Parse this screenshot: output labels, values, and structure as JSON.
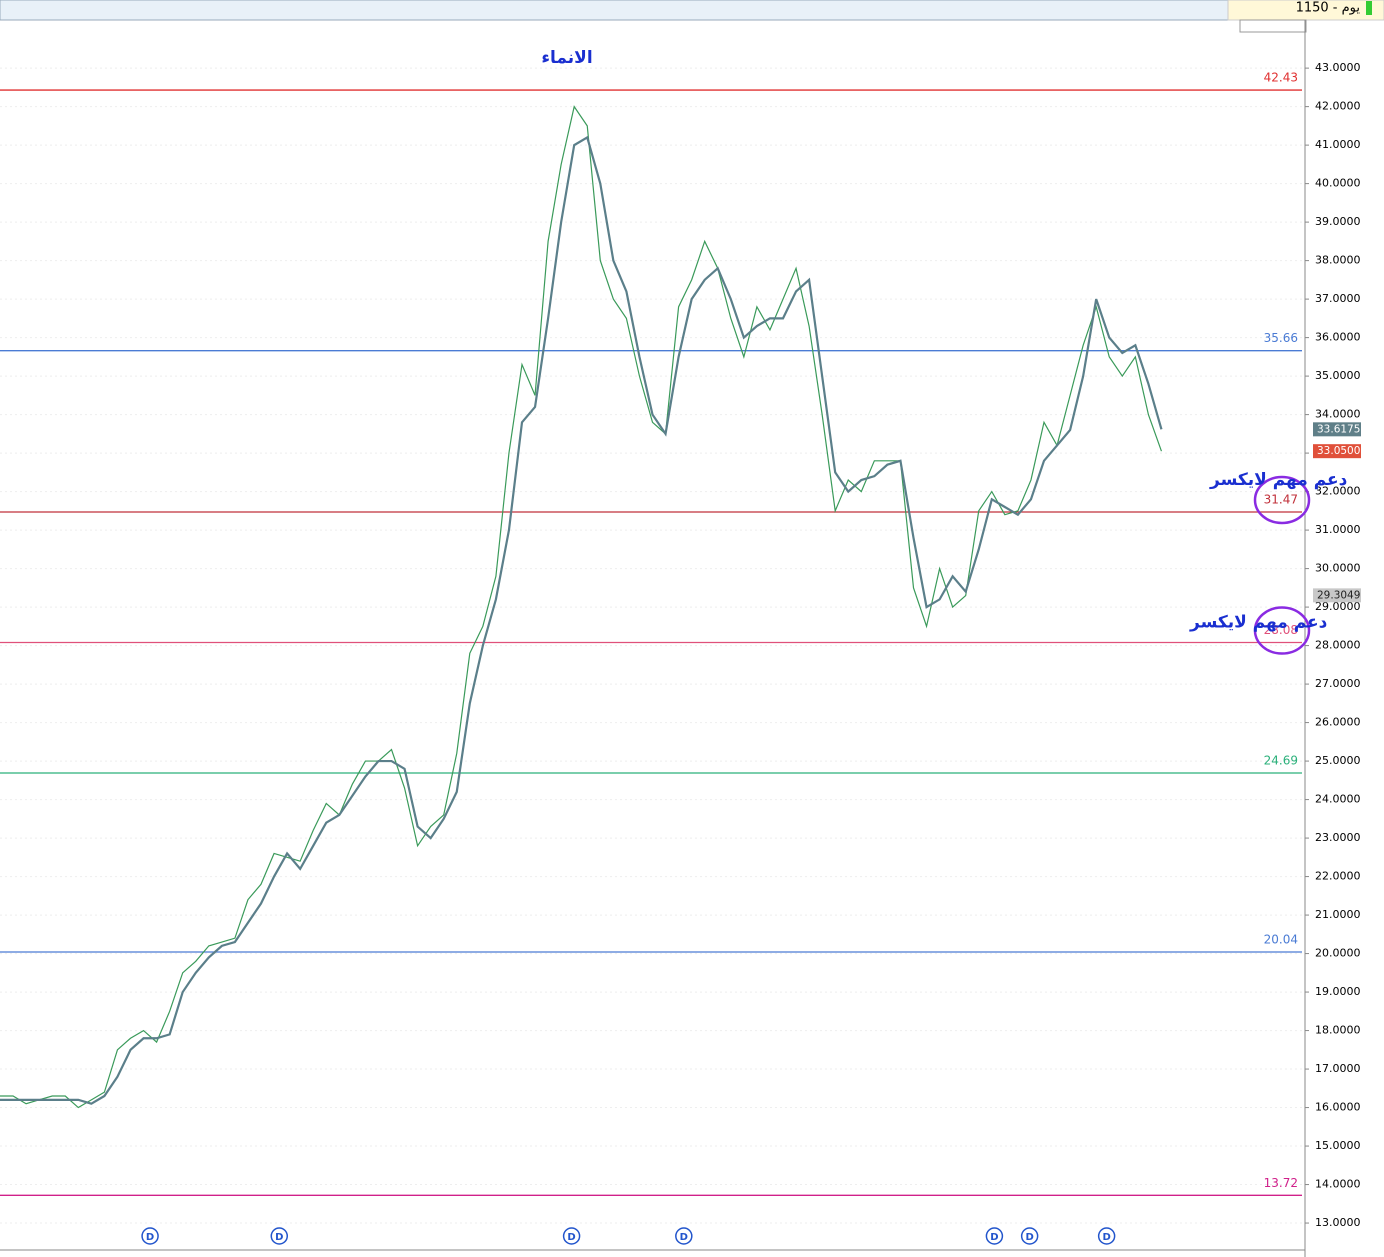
{
  "chart_data": {
    "type": "line",
    "header": "1150 - يوم",
    "title": "الانماء",
    "xlim": [
      0,
      100
    ],
    "ylim": [
      12.3,
      44.25
    ],
    "yticks": [
      {
        "value": 13,
        "label": "13.0000"
      },
      {
        "value": 14,
        "label": "14.0000"
      },
      {
        "value": 15,
        "label": "15.0000"
      },
      {
        "value": 16,
        "label": "16.0000"
      },
      {
        "value": 17,
        "label": "17.0000"
      },
      {
        "value": 18,
        "label": "18.0000"
      },
      {
        "value": 19,
        "label": "19.0000"
      },
      {
        "value": 20,
        "label": "20.0000"
      },
      {
        "value": 21,
        "label": "21.0000"
      },
      {
        "value": 22,
        "label": "22.0000"
      },
      {
        "value": 23,
        "label": "23.0000"
      },
      {
        "value": 24,
        "label": "24.0000"
      },
      {
        "value": 25,
        "label": "25.0000"
      },
      {
        "value": 26,
        "label": "26.0000"
      },
      {
        "value": 27,
        "label": "27.0000"
      },
      {
        "value": 28,
        "label": "28.0000"
      },
      {
        "value": 29,
        "label": "29.0000"
      },
      {
        "value": 30,
        "label": "30.0000"
      },
      {
        "value": 31,
        "label": "31.0000"
      },
      {
        "value": 32,
        "label": "32.0000"
      },
      {
        "value": 33,
        "label": "33.0000"
      },
      {
        "value": 34,
        "label": "34.0000"
      },
      {
        "value": 35,
        "label": "35.0000"
      },
      {
        "value": 36,
        "label": "36.0000"
      },
      {
        "value": 37,
        "label": "37.0000"
      },
      {
        "value": 38,
        "label": "38.0000"
      },
      {
        "value": 39,
        "label": "39.0000"
      },
      {
        "value": 40,
        "label": "40.0000"
      },
      {
        "value": 41,
        "label": "41.0000"
      },
      {
        "value": 42,
        "label": "42.0000"
      },
      {
        "value": 43,
        "label": "43.0000"
      }
    ],
    "grid": true,
    "x": [
      0,
      1,
      2,
      3,
      4,
      5,
      6,
      7,
      8,
      9,
      10,
      11,
      12,
      13,
      14,
      15,
      16,
      17,
      18,
      19,
      20,
      21,
      22,
      23,
      24,
      25,
      26,
      27,
      28,
      29,
      30,
      31,
      32,
      33,
      34,
      35,
      36,
      37,
      38,
      39,
      40,
      41,
      42,
      43,
      44,
      45,
      46,
      47,
      48,
      49,
      50,
      51,
      52,
      53,
      54,
      55,
      56,
      57,
      58,
      59,
      60,
      61,
      62,
      63,
      64,
      65,
      66,
      67,
      68,
      69,
      70,
      71,
      72,
      73,
      74,
      75,
      76,
      77,
      78,
      79,
      80,
      81,
      82,
      83,
      84,
      85,
      86,
      87,
      88,
      89
    ],
    "series": [
      {
        "color": "#3a9a5a",
        "values": [
          16.3,
          16.3,
          16.1,
          16.2,
          16.3,
          16.3,
          16.0,
          16.2,
          16.4,
          17.5,
          17.8,
          18.0,
          17.7,
          18.5,
          19.5,
          19.8,
          20.2,
          20.3,
          20.4,
          21.4,
          21.8,
          22.6,
          22.5,
          22.4,
          23.2,
          23.9,
          23.6,
          24.4,
          25.0,
          25.0,
          25.3,
          24.3,
          22.8,
          23.3,
          23.6,
          25.2,
          27.8,
          28.5,
          29.8,
          33.0,
          35.3,
          34.5,
          38.5,
          40.5,
          42.0,
          41.5,
          38.0,
          37.0,
          36.5,
          35.0,
          33.8,
          33.5,
          36.8,
          37.5,
          38.5,
          37.8,
          36.5,
          35.5,
          36.8,
          36.2,
          37.0,
          37.8,
          36.3,
          34.0,
          31.5,
          32.3,
          32.0,
          32.8,
          32.8,
          32.8,
          29.5,
          28.5,
          30.0,
          29.0,
          29.3,
          31.5,
          32.0,
          31.4,
          31.5,
          32.3,
          33.8,
          33.2,
          34.5,
          35.8,
          36.8,
          35.5,
          35.0,
          35.5,
          34.0,
          33.05
        ]
      },
      {
        "color": "#5b7f8a",
        "values": [
          16.2,
          16.2,
          16.2,
          16.2,
          16.2,
          16.2,
          16.2,
          16.1,
          16.3,
          16.8,
          17.5,
          17.8,
          17.8,
          17.9,
          19.0,
          19.5,
          19.9,
          20.2,
          20.3,
          20.8,
          21.3,
          22.0,
          22.6,
          22.2,
          22.8,
          23.4,
          23.6,
          24.1,
          24.6,
          25.0,
          25.0,
          24.8,
          23.3,
          23.0,
          23.5,
          24.2,
          26.5,
          28.0,
          29.2,
          31.0,
          33.8,
          34.2,
          36.5,
          39.0,
          41.0,
          41.2,
          40.0,
          38.0,
          37.2,
          35.5,
          34.0,
          33.5,
          35.5,
          37.0,
          37.5,
          37.8,
          37.0,
          36.0,
          36.3,
          36.5,
          36.5,
          37.2,
          37.5,
          35.0,
          32.5,
          32.0,
          32.3,
          32.4,
          32.7,
          32.8,
          30.8,
          29.0,
          29.2,
          29.8,
          29.4,
          30.5,
          31.8,
          31.6,
          31.4,
          31.8,
          32.8,
          33.2,
          33.6,
          35.0,
          37.0,
          36.0,
          35.6,
          35.8,
          34.8,
          33.6175
        ]
      }
    ],
    "levels": [
      {
        "value": 42.43,
        "color": "#e03030"
      },
      {
        "value": 35.66,
        "color": "#4a7bd4"
      },
      {
        "value": 31.47,
        "color": "#c0303a",
        "circled": true
      },
      {
        "value": 28.08,
        "color": "#e0507a",
        "circled": true
      },
      {
        "value": 24.69,
        "color": "#2ab07a"
      },
      {
        "value": 20.04,
        "color": "#4a7bd4"
      },
      {
        "value": 13.72,
        "color": "#d0208a"
      }
    ],
    "annotations": [
      {
        "text": "دعم مهم لايكسر",
        "y": 32.3
      },
      {
        "text": "دعم مهم لايكسر",
        "y": 28.6
      }
    ],
    "price_tags": [
      {
        "value": 33.6175,
        "label": "33.6175",
        "color": "#5f7f88"
      },
      {
        "value": 33.05,
        "label": "33.0500",
        "color": "#e0503a"
      },
      {
        "value": 29.3049,
        "label": "29.3049",
        "color": "#c8c8c8"
      }
    ],
    "dividend_markers": {
      "label": "D",
      "x": [
        11.5,
        21.4,
        43.8,
        52.4,
        76.2,
        78.9,
        84.8
      ]
    }
  }
}
